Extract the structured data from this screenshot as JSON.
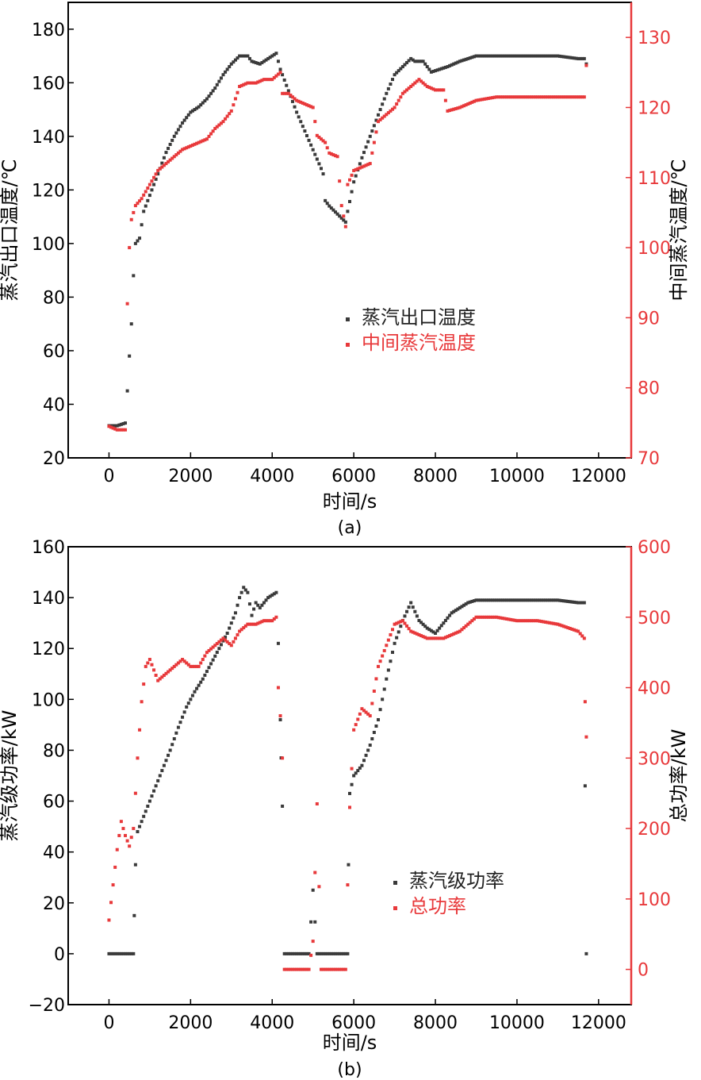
{
  "figure": {
    "captions": [
      "(a)",
      "(b)"
    ]
  },
  "chart_data": [
    {
      "type": "scatter",
      "caption": "(a)",
      "xlabel": "时间/s",
      "ylabel": "蒸汽出口温度/℃",
      "y2label": "中间蒸汽温度/℃",
      "xlim": [
        -1000,
        12800
      ],
      "ylim": [
        20,
        190
      ],
      "y2lim": [
        70,
        135
      ],
      "xticks": [
        0,
        2000,
        4000,
        6000,
        8000,
        10000,
        12000
      ],
      "yticks": [
        20,
        40,
        60,
        80,
        100,
        120,
        140,
        160,
        180
      ],
      "y2ticks": [
        70,
        80,
        90,
        100,
        110,
        120,
        130
      ],
      "legend_position": "center-right",
      "series": [
        {
          "name": "蒸汽出口温度",
          "color": "#3a3a3a",
          "axis": "left",
          "points": [
            [
              0,
              32
            ],
            [
              200,
              32
            ],
            [
              400,
              33
            ],
            [
              450,
              45
            ],
            [
              500,
              58
            ],
            [
              550,
              70
            ],
            [
              600,
              88
            ],
            [
              650,
              100
            ],
            [
              750,
              102
            ],
            [
              850,
              112
            ],
            [
              1000,
              118
            ],
            [
              1200,
              126
            ],
            [
              1400,
              134
            ],
            [
              1600,
              140
            ],
            [
              1800,
              145
            ],
            [
              2000,
              149
            ],
            [
              2200,
              151
            ],
            [
              2400,
              154
            ],
            [
              2600,
              158
            ],
            [
              2800,
              163
            ],
            [
              3000,
              167
            ],
            [
              3200,
              170
            ],
            [
              3400,
              170
            ],
            [
              3500,
              168
            ],
            [
              3700,
              167
            ],
            [
              3900,
              169
            ],
            [
              4100,
              171
            ],
            [
              4200,
              165
            ],
            [
              4400,
              157
            ],
            [
              4600,
              149
            ],
            [
              4800,
              142
            ],
            [
              5000,
              135
            ],
            [
              5200,
              128
            ],
            [
              5250,
              126
            ],
            [
              5300,
              116
            ],
            [
              5400,
              114
            ],
            [
              5600,
              111
            ],
            [
              5800,
              108
            ],
            [
              5850,
              112
            ],
            [
              6000,
              123
            ],
            [
              6200,
              132
            ],
            [
              6400,
              140
            ],
            [
              6600,
              148
            ],
            [
              6800,
              156
            ],
            [
              7000,
              163
            ],
            [
              7200,
              166
            ],
            [
              7400,
              169
            ],
            [
              7500,
              168
            ],
            [
              7700,
              168
            ],
            [
              7900,
              164
            ],
            [
              8100,
              165
            ],
            [
              8300,
              166
            ],
            [
              8600,
              168
            ],
            [
              9000,
              170
            ],
            [
              9500,
              170
            ],
            [
              10000,
              170
            ],
            [
              10500,
              170
            ],
            [
              11000,
              170
            ],
            [
              11500,
              169
            ],
            [
              11650,
              169
            ],
            [
              11700,
              167
            ]
          ]
        },
        {
          "name": "中间蒸汽温度",
          "color": "#e8393b",
          "axis": "right",
          "points": [
            [
              0,
              74.5
            ],
            [
              200,
              74
            ],
            [
              400,
              74
            ],
            [
              450,
              92
            ],
            [
              500,
              100
            ],
            [
              550,
              104
            ],
            [
              600,
              105
            ],
            [
              650,
              106
            ],
            [
              800,
              107
            ],
            [
              1000,
              109
            ],
            [
              1200,
              111
            ],
            [
              1400,
              112
            ],
            [
              1600,
              113
            ],
            [
              1800,
              114
            ],
            [
              2000,
              114.5
            ],
            [
              2200,
              115
            ],
            [
              2400,
              115.5
            ],
            [
              2600,
              117
            ],
            [
              2800,
              118
            ],
            [
              3000,
              119.5
            ],
            [
              3200,
              123
            ],
            [
              3400,
              123.5
            ],
            [
              3600,
              123.5
            ],
            [
              3800,
              124
            ],
            [
              4000,
              124
            ],
            [
              4200,
              125
            ],
            [
              4250,
              122
            ],
            [
              4400,
              122
            ],
            [
              4600,
              121
            ],
            [
              4800,
              120.5
            ],
            [
              5000,
              120
            ],
            [
              5100,
              116
            ],
            [
              5300,
              115
            ],
            [
              5400,
              113.5
            ],
            [
              5600,
              113
            ],
            [
              5700,
              106
            ],
            [
              5800,
              103
            ],
            [
              5850,
              109
            ],
            [
              6000,
              111
            ],
            [
              6200,
              111.5
            ],
            [
              6400,
              112
            ],
            [
              6600,
              118
            ],
            [
              6800,
              119
            ],
            [
              7000,
              120
            ],
            [
              7200,
              122
            ],
            [
              7400,
              123
            ],
            [
              7600,
              124
            ],
            [
              7800,
              123
            ],
            [
              8000,
              122.5
            ],
            [
              8200,
              122.5
            ],
            [
              8300,
              119.5
            ],
            [
              8600,
              120
            ],
            [
              9000,
              121
            ],
            [
              9500,
              121.5
            ],
            [
              10000,
              121.5
            ],
            [
              10500,
              121.5
            ],
            [
              11000,
              121.5
            ],
            [
              11500,
              121.5
            ],
            [
              11650,
              121.5
            ],
            [
              11700,
              126
            ]
          ]
        }
      ]
    },
    {
      "type": "scatter",
      "caption": "(b)",
      "xlabel": "时间/s",
      "ylabel": "蒸汽级功率/kW",
      "y2label": "总功率/kW",
      "xlim": [
        -1000,
        12800
      ],
      "ylim": [
        -20,
        160
      ],
      "y2lim": [
        -50,
        600
      ],
      "xticks": [
        0,
        2000,
        4000,
        6000,
        8000,
        10000,
        12000
      ],
      "yticks": [
        -20,
        0,
        20,
        40,
        60,
        80,
        100,
        120,
        140,
        160
      ],
      "y2ticks": [
        0,
        100,
        200,
        300,
        400,
        500,
        600
      ],
      "legend_position": "bottom-right",
      "series": [
        {
          "name": "蒸汽级功率",
          "color": "#3a3a3a",
          "axis": "left",
          "points": [
            [
              0,
              0
            ],
            [
              200,
              0
            ],
            [
              400,
              0
            ],
            [
              600,
              0
            ],
            [
              620,
              15
            ],
            [
              650,
              35
            ],
            [
              700,
              48
            ],
            [
              900,
              56
            ],
            [
              1100,
              64
            ],
            [
              1300,
              72
            ],
            [
              1500,
              80
            ],
            [
              1700,
              89
            ],
            [
              1900,
              97
            ],
            [
              2100,
              103
            ],
            [
              2300,
              108
            ],
            [
              2500,
              114
            ],
            [
              2700,
              120
            ],
            [
              2900,
              126
            ],
            [
              3100,
              134
            ],
            [
              3200,
              140
            ],
            [
              3300,
              144
            ],
            [
              3400,
              142
            ],
            [
              3500,
              133
            ],
            [
              3600,
              138
            ],
            [
              3700,
              136
            ],
            [
              3800,
              138
            ],
            [
              3900,
              140
            ],
            [
              4000,
              141
            ],
            [
              4100,
              142
            ],
            [
              4150,
              122
            ],
            [
              4200,
              92
            ],
            [
              4220,
              77
            ],
            [
              4250,
              58
            ],
            [
              4300,
              0
            ],
            [
              4600,
              0
            ],
            [
              4900,
              0
            ],
            [
              5000,
              25
            ],
            [
              5100,
              0
            ],
            [
              5400,
              0
            ],
            [
              5700,
              0
            ],
            [
              5850,
              0
            ],
            [
              5870,
              35
            ],
            [
              5900,
              63
            ],
            [
              6000,
              70
            ],
            [
              6200,
              74
            ],
            [
              6400,
              82
            ],
            [
              6600,
              92
            ],
            [
              6800,
              108
            ],
            [
              7000,
              122
            ],
            [
              7200,
              131
            ],
            [
              7400,
              138
            ],
            [
              7600,
              131
            ],
            [
              7800,
              128
            ],
            [
              8000,
              126
            ],
            [
              8200,
              130
            ],
            [
              8400,
              134
            ],
            [
              8600,
              136
            ],
            [
              8800,
              138
            ],
            [
              9000,
              139
            ],
            [
              9500,
              139
            ],
            [
              10000,
              139
            ],
            [
              10500,
              139
            ],
            [
              11000,
              139
            ],
            [
              11500,
              138
            ],
            [
              11650,
              138
            ],
            [
              11670,
              66
            ],
            [
              11700,
              0
            ]
          ]
        },
        {
          "name": "总功率",
          "color": "#e8393b",
          "axis": "right",
          "points": [
            [
              0,
              70
            ],
            [
              100,
              120
            ],
            [
              200,
              170
            ],
            [
              300,
              210
            ],
            [
              400,
              190
            ],
            [
              500,
              175
            ],
            [
              600,
              200
            ],
            [
              700,
              300
            ],
            [
              800,
              380
            ],
            [
              900,
              430
            ],
            [
              1000,
              440
            ],
            [
              1200,
              410
            ],
            [
              1400,
              420
            ],
            [
              1600,
              430
            ],
            [
              1800,
              440
            ],
            [
              2000,
              430
            ],
            [
              2200,
              430
            ],
            [
              2400,
              450
            ],
            [
              2600,
              460
            ],
            [
              2800,
              470
            ],
            [
              3000,
              460
            ],
            [
              3200,
              480
            ],
            [
              3400,
              490
            ],
            [
              3600,
              490
            ],
            [
              3800,
              495
            ],
            [
              4000,
              495
            ],
            [
              4100,
              500
            ],
            [
              4150,
              400
            ],
            [
              4200,
              360
            ],
            [
              4250,
              300
            ],
            [
              4300,
              0
            ],
            [
              4600,
              0
            ],
            [
              4900,
              0
            ],
            [
              5000,
              40
            ],
            [
              5100,
              235
            ],
            [
              5200,
              0
            ],
            [
              5500,
              0
            ],
            [
              5800,
              0
            ],
            [
              5850,
              120
            ],
            [
              5900,
              230
            ],
            [
              6000,
              340
            ],
            [
              6200,
              370
            ],
            [
              6400,
              360
            ],
            [
              6600,
              430
            ],
            [
              6800,
              460
            ],
            [
              7000,
              490
            ],
            [
              7200,
              495
            ],
            [
              7400,
              480
            ],
            [
              7600,
              475
            ],
            [
              7800,
              470
            ],
            [
              8000,
              470
            ],
            [
              8200,
              470
            ],
            [
              8400,
              475
            ],
            [
              8600,
              480
            ],
            [
              8800,
              490
            ],
            [
              9000,
              500
            ],
            [
              9500,
              500
            ],
            [
              10000,
              495
            ],
            [
              10500,
              495
            ],
            [
              11000,
              490
            ],
            [
              11500,
              480
            ],
            [
              11650,
              470
            ],
            [
              11670,
              380
            ],
            [
              11700,
              330
            ]
          ]
        }
      ]
    }
  ]
}
